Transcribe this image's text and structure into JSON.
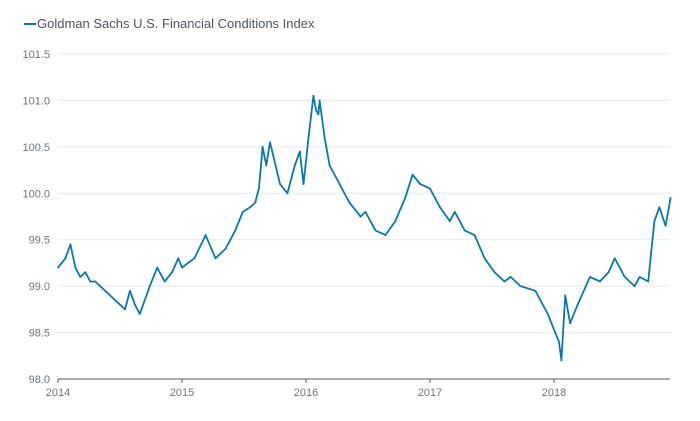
{
  "chart_data": {
    "type": "line",
    "title": "",
    "legend": [
      {
        "label": "Goldman Sachs U.S. Financial Conditions Index",
        "color": "#0b78ad"
      }
    ],
    "legend_position": "top-left",
    "xlabel": "",
    "ylabel": "",
    "xlim": [
      2014.0,
      2018.94
    ],
    "ylim": [
      98.0,
      101.5
    ],
    "x_ticks": [
      "2014",
      "2015",
      "2016",
      "2017",
      "2018"
    ],
    "x_tick_values": [
      2014,
      2015,
      2016,
      2017,
      2018
    ],
    "y_ticks": [
      "98.0",
      "98.5",
      "99.0",
      "99.5",
      "100.0",
      "100.5",
      "101.0",
      "101.5"
    ],
    "y_tick_values": [
      98.0,
      98.5,
      99.0,
      99.5,
      100.0,
      100.5,
      101.0,
      101.5
    ],
    "grid": "horizontal",
    "series": [
      {
        "name": "Goldman Sachs U.S. Financial Conditions Index",
        "color": "#0b78ad",
        "x": [
          2014.0,
          2014.03,
          2014.06,
          2014.1,
          2014.14,
          2014.18,
          2014.22,
          2014.26,
          2014.3,
          2014.34,
          2014.38,
          2014.42,
          2014.46,
          2014.5,
          2014.54,
          2014.58,
          2014.62,
          2014.66,
          2014.7,
          2014.74,
          2014.8,
          2014.86,
          2014.92,
          2014.97,
          2015.0,
          2015.05,
          2015.1,
          2015.19,
          2015.27,
          2015.35,
          2015.43,
          2015.49,
          2015.55,
          2015.59,
          2015.62,
          2015.65,
          2015.68,
          2015.71,
          2015.79,
          2015.85,
          2015.91,
          2015.95,
          2015.98,
          2016.02,
          2016.06,
          2016.08,
          2016.1,
          2016.11,
          2016.15,
          2016.19,
          2016.27,
          2016.35,
          2016.44,
          2016.48,
          2016.56,
          2016.64,
          2016.72,
          2016.8,
          2016.86,
          2016.92,
          2017.0,
          2017.08,
          2017.16,
          2017.2,
          2017.28,
          2017.36,
          2017.44,
          2017.52,
          2017.6,
          2017.65,
          2017.73,
          2017.85,
          2017.95,
          2018.01,
          2018.04,
          2018.06,
          2018.09,
          2018.13,
          2018.19,
          2018.29,
          2018.37,
          2018.44,
          2018.49,
          2018.57,
          2018.65,
          2018.69,
          2018.76,
          2018.81,
          2018.85,
          2018.9,
          2018.94
        ],
        "y": [
          99.2,
          99.25,
          99.3,
          99.45,
          99.2,
          99.1,
          99.15,
          99.05,
          99.05,
          99.0,
          98.95,
          98.9,
          98.85,
          98.8,
          98.75,
          98.95,
          98.8,
          98.7,
          98.85,
          99.0,
          99.2,
          99.05,
          99.15,
          99.3,
          99.2,
          99.25,
          99.3,
          99.55,
          99.3,
          99.4,
          99.6,
          99.8,
          99.85,
          99.9,
          100.05,
          100.5,
          100.3,
          100.55,
          100.1,
          100.0,
          100.3,
          100.45,
          100.1,
          100.6,
          101.05,
          100.9,
          100.85,
          101.0,
          100.6,
          100.3,
          100.1,
          99.9,
          99.75,
          99.8,
          99.6,
          99.55,
          99.7,
          99.95,
          100.2,
          100.1,
          100.05,
          99.85,
          99.7,
          99.8,
          99.6,
          99.55,
          99.3,
          99.15,
          99.05,
          99.1,
          99.0,
          98.95,
          98.7,
          98.5,
          98.4,
          98.2,
          98.9,
          98.6,
          98.8,
          99.1,
          99.05,
          99.15,
          99.3,
          99.1,
          99.0,
          99.1,
          99.05,
          99.7,
          99.85,
          99.65,
          99.95
        ]
      }
    ]
  }
}
